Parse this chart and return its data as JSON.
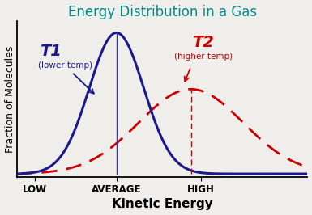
{
  "title": "Energy Distribution in a Gas",
  "title_color": "#008B8B",
  "xlabel": "Kinetic Energy",
  "ylabel": "Fraction of Molecules",
  "xlabel_fontsize": 11,
  "ylabel_fontsize": 9,
  "title_fontsize": 12,
  "background_color": "#f0eeea",
  "t1_color": "#1a1a8c",
  "t2_color": "#cc0000",
  "t1_label": "T1",
  "t1_sublabel": "(lower temp)",
  "t2_label": "T2",
  "t2_sublabel": "(higher temp)",
  "vline_color_t1": "#3333aa",
  "vline_color_t2": "#cc0000",
  "x_tick_labels": [
    "LOW",
    "AVERAGE",
    "HIGH"
  ],
  "x_tick_positions": [
    0.05,
    0.38,
    0.72
  ],
  "t1_mean": 0.38,
  "t1_std": 0.11,
  "t2_mean": 0.68,
  "t2_std": 0.21,
  "t1_amplitude": 1.0,
  "t2_amplitude": 0.6,
  "xlim": [
    -0.02,
    1.15
  ],
  "ylim": [
    -0.02,
    1.08
  ]
}
